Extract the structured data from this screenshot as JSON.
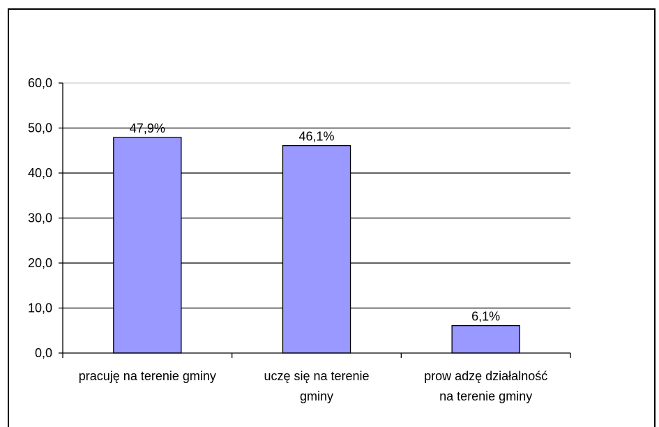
{
  "chart_data": {
    "type": "bar",
    "title": "",
    "xlabel": "",
    "ylabel": "",
    "categories": [
      [
        "pracuję na terenie gminy"
      ],
      [
        "uczę się na terenie",
        "gminy"
      ],
      [
        "prow adzę działalność",
        "na terenie gminy"
      ]
    ],
    "values": [
      47.9,
      46.1,
      6.1
    ],
    "value_labels": [
      "47,9%",
      "46,1%",
      "6,1%"
    ],
    "ylim": [
      0,
      60
    ],
    "yticks": [
      "0,0",
      "10,0",
      "20,0",
      "30,0",
      "40,0",
      "50,0",
      "60,0"
    ],
    "grid": true,
    "legend": "none",
    "colors": {
      "bar_fill": "#9999ff",
      "bar_stroke": "#000000",
      "gridline": "#000000",
      "top_gridline": "#c0c0c0"
    }
  }
}
